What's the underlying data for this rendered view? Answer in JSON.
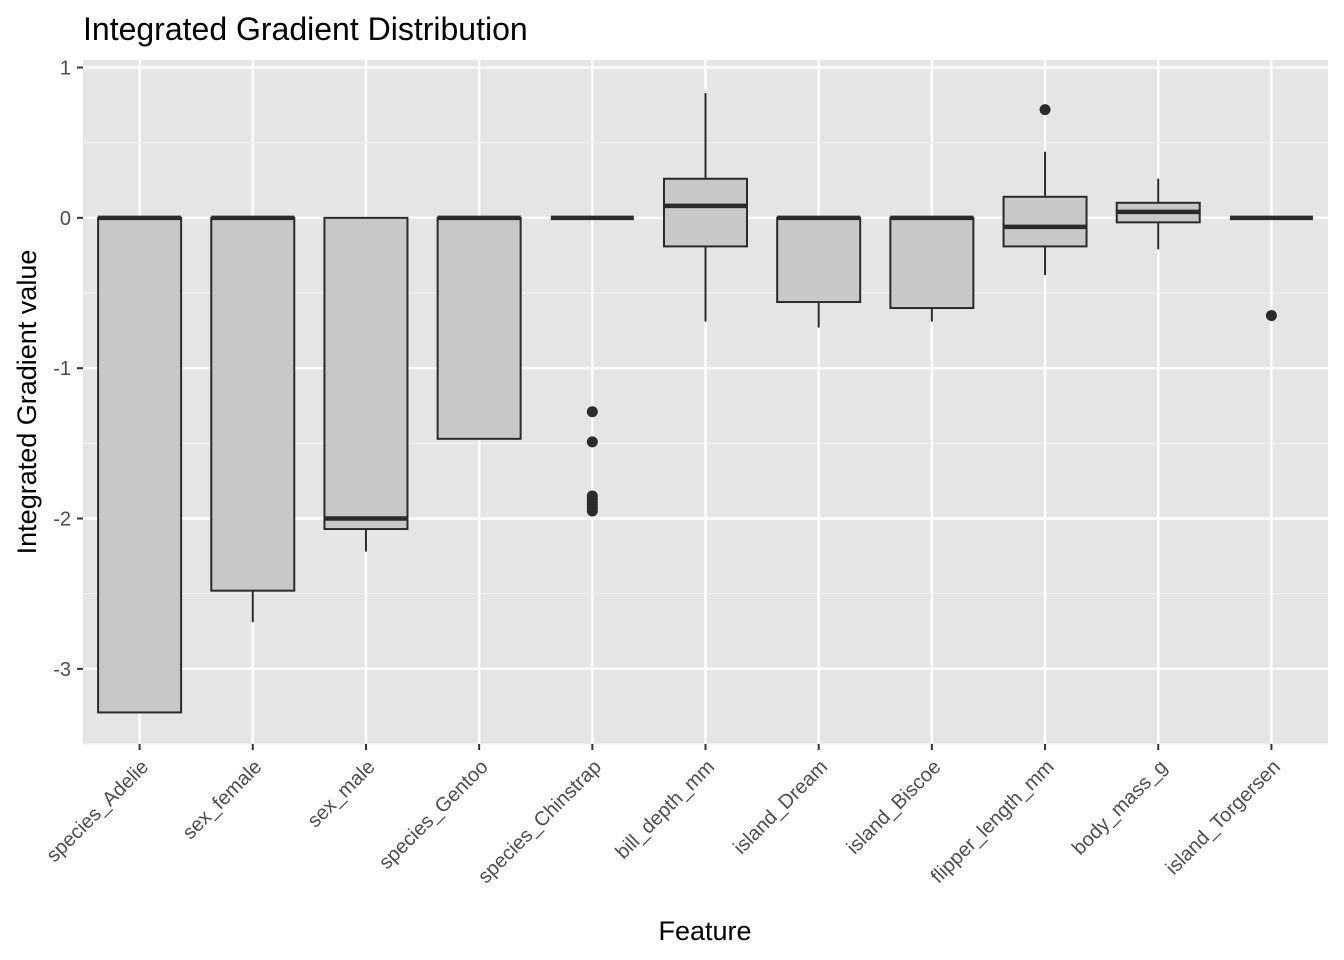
{
  "chart_data": {
    "type": "box",
    "title": "Integrated Gradient Distribution",
    "xlabel": "Feature",
    "ylabel": "Integrated Gradient value",
    "ylim": [
      -3.5,
      1.05
    ],
    "yticks": [
      1,
      0,
      -1,
      -2,
      -3
    ],
    "ytick_labels": [
      "1",
      "0",
      "-1",
      "-2",
      "-3"
    ],
    "grid": true,
    "legend": "none",
    "colors": {
      "panel_background": "#e5e5e5",
      "grid_major": "#ffffff",
      "grid_minor": "#f2f2f2",
      "box_fill": "#c8c8c8",
      "box_outline": "#2b2b2b",
      "outlier": "#2b2b2b"
    },
    "categories": [
      "species_Adelie",
      "sex_female",
      "sex_male",
      "species_Gentoo",
      "species_Chinstrap",
      "bill_depth_mm",
      "island_Dream",
      "island_Biscoe",
      "flipper_length_mm",
      "body_mass_g",
      "island_Torgersen"
    ],
    "boxes": [
      {
        "category": "species_Adelie",
        "whisker_low": -3.29,
        "q1": -3.29,
        "median": 0,
        "q3": 0,
        "whisker_high": 0,
        "outliers": []
      },
      {
        "category": "sex_female",
        "whisker_low": -2.69,
        "q1": -2.48,
        "median": 0,
        "q3": 0,
        "whisker_high": 0,
        "outliers": []
      },
      {
        "category": "sex_male",
        "whisker_low": -2.22,
        "q1": -2.07,
        "median": -2.0,
        "q3": 0,
        "whisker_high": 0,
        "outliers": []
      },
      {
        "category": "species_Gentoo",
        "whisker_low": -1.47,
        "q1": -1.47,
        "median": 0,
        "q3": 0,
        "whisker_high": 0,
        "outliers": []
      },
      {
        "category": "species_Chinstrap",
        "whisker_low": 0,
        "q1": 0,
        "median": 0,
        "q3": 0,
        "whisker_high": 0,
        "outliers": [
          -1.29,
          -1.49,
          -1.85,
          -1.87,
          -1.89,
          -1.91,
          -1.93,
          -1.95
        ]
      },
      {
        "category": "bill_depth_mm",
        "whisker_low": -0.69,
        "q1": -0.19,
        "median": 0.08,
        "q3": 0.26,
        "whisker_high": 0.83,
        "outliers": []
      },
      {
        "category": "island_Dream",
        "whisker_low": -0.73,
        "q1": -0.56,
        "median": 0,
        "q3": 0,
        "whisker_high": 0,
        "outliers": []
      },
      {
        "category": "island_Biscoe",
        "whisker_low": -0.69,
        "q1": -0.6,
        "median": 0,
        "q3": 0,
        "whisker_high": 0,
        "outliers": []
      },
      {
        "category": "flipper_length_mm",
        "whisker_low": -0.38,
        "q1": -0.19,
        "median": -0.06,
        "q3": 0.14,
        "whisker_high": 0.44,
        "outliers": [
          0.72
        ]
      },
      {
        "category": "body_mass_g",
        "whisker_low": -0.21,
        "q1": -0.03,
        "median": 0.04,
        "q3": 0.1,
        "whisker_high": 0.26,
        "outliers": []
      },
      {
        "category": "island_Torgersen",
        "whisker_low": 0,
        "q1": 0,
        "median": 0,
        "q3": 0,
        "whisker_high": 0,
        "outliers": [
          -0.65
        ]
      }
    ]
  }
}
